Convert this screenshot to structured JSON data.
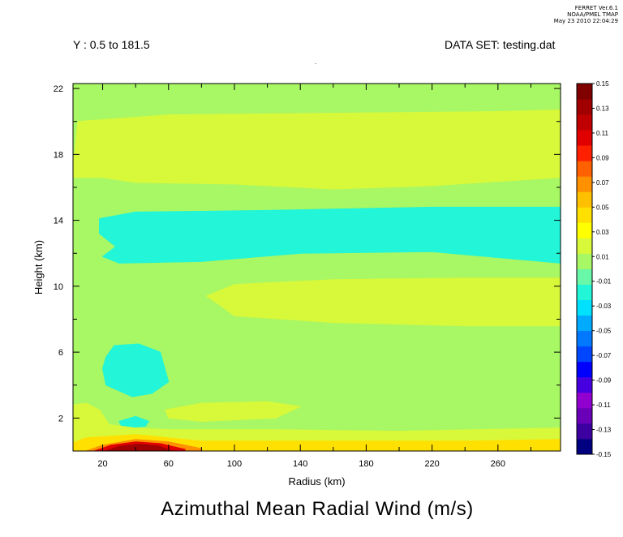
{
  "stamp": {
    "line1": "FERRET  Ver.6.1",
    "line2": "NOAA/PMEL TMAP",
    "line3": "May 23 2010 22:04:29"
  },
  "header": {
    "left": "Y : 0.5 to 181.5",
    "right": "DATA SET: testing.dat"
  },
  "colors": {
    "background_field": "#69f7a8",
    "frame": "#000000"
  },
  "chart_data": {
    "type": "heatmap",
    "title": "Azimuthal Mean Radial Wind (m/s)",
    "xlabel": "Radius (km)",
    "ylabel": "Height (km)",
    "xlim": [
      2,
      298
    ],
    "ylim": [
      0,
      22.3
    ],
    "xticks": [
      20,
      60,
      100,
      140,
      180,
      220,
      260
    ],
    "xtick_labels": [
      "20",
      "60",
      "100",
      "140",
      "180",
      "220",
      "260"
    ],
    "yticks": [
      2,
      6,
      10,
      14,
      18,
      22
    ],
    "ytick_labels": [
      "2",
      "6",
      "10",
      "14",
      "18",
      "22"
    ],
    "colorbar": {
      "levels": [
        -0.15,
        -0.13,
        -0.11,
        -0.09,
        -0.07,
        -0.05,
        -0.03,
        -0.01,
        0.01,
        0.03,
        0.05,
        0.07,
        0.09,
        0.11,
        0.13,
        0.15
      ],
      "labels": [
        "-0.15",
        "-0.13",
        "-0.11",
        "-0.09",
        "-0.07",
        "-0.05",
        "-0.03",
        "-0.01",
        "0.01",
        "0.03",
        "0.05",
        "0.07",
        "0.09",
        "0.11",
        "0.13",
        "0.15"
      ],
      "colors": [
        "#000080",
        "#3c00a0",
        "#6a00b8",
        "#9200d0",
        "#4600e0",
        "#0000ff",
        "#0046ff",
        "#0078ff",
        "#00aaff",
        "#00e0ff",
        "#22f5d8",
        "#69f7a8",
        "#a8f764",
        "#d8f83a",
        "#ffff00",
        "#ffe000",
        "#ffc000",
        "#ff9000",
        "#ff6000",
        "#ff2000",
        "#e00000",
        "#c00000",
        "#a00000",
        "#800000"
      ]
    },
    "regions": [
      {
        "level": 0,
        "points": [
          [
            2,
            0
          ],
          [
            298,
            0
          ],
          [
            298,
            22.3
          ],
          [
            2,
            22.3
          ]
        ]
      },
      {
        "level": 0.02,
        "points": [
          [
            2,
            17.2
          ],
          [
            20,
            18.0
          ],
          [
            80,
            19.2
          ],
          [
            160,
            19.6
          ],
          [
            240,
            19.8
          ],
          [
            298,
            19.8
          ],
          [
            298,
            16.6
          ],
          [
            220,
            16.1
          ],
          [
            160,
            15.9
          ],
          [
            100,
            16.2
          ],
          [
            40,
            16.3
          ],
          [
            20,
            16.6
          ],
          [
            2,
            16.6
          ]
        ]
      },
      {
        "level": 0.02,
        "points": [
          [
            5,
            20.0
          ],
          [
            60,
            20.4
          ],
          [
            160,
            20.5
          ],
          [
            260,
            20.6
          ],
          [
            298,
            20.7
          ],
          [
            298,
            19.8
          ],
          [
            240,
            19.8
          ],
          [
            160,
            19.6
          ],
          [
            80,
            19.2
          ],
          [
            20,
            18.0
          ],
          [
            2,
            17.2
          ]
        ]
      },
      {
        "level": -0.02,
        "points": [
          [
            18,
            14.1
          ],
          [
            40,
            14.5
          ],
          [
            120,
            14.6
          ],
          [
            220,
            14.8
          ],
          [
            298,
            14.8
          ],
          [
            298,
            11.4
          ],
          [
            220,
            12.1
          ],
          [
            140,
            12.0
          ],
          [
            80,
            11.5
          ],
          [
            30,
            11.4
          ],
          [
            20,
            11.8
          ],
          [
            28,
            12.4
          ],
          [
            18,
            13.2
          ]
        ]
      },
      {
        "level": 0.02,
        "points": [
          [
            83,
            9.4
          ],
          [
            100,
            10.1
          ],
          [
            160,
            10.4
          ],
          [
            240,
            10.5
          ],
          [
            298,
            10.5
          ],
          [
            298,
            7.6
          ],
          [
            240,
            7.6
          ],
          [
            160,
            7.8
          ],
          [
            100,
            8.2
          ],
          [
            92,
            8.8
          ]
        ]
      },
      {
        "level": -0.02,
        "points": [
          [
            22,
            5.7
          ],
          [
            27,
            6.4
          ],
          [
            42,
            6.5
          ],
          [
            55,
            6.0
          ],
          [
            60,
            4.2
          ],
          [
            50,
            3.5
          ],
          [
            38,
            3.3
          ],
          [
            22,
            4.0
          ],
          [
            20,
            5.0
          ]
        ]
      },
      {
        "level": 0.02,
        "points": [
          [
            58,
            2.5
          ],
          [
            80,
            2.9
          ],
          [
            120,
            3.0
          ],
          [
            140,
            2.7
          ],
          [
            125,
            2.0
          ],
          [
            80,
            1.8
          ],
          [
            60,
            2.0
          ]
        ]
      },
      {
        "level": -0.02,
        "points": [
          [
            30,
            1.8
          ],
          [
            40,
            2.1
          ],
          [
            48,
            1.8
          ],
          [
            46,
            1.5
          ],
          [
            32,
            1.4
          ]
        ]
      },
      {
        "level": 0.02,
        "points": [
          [
            2,
            0
          ],
          [
            2,
            2.8
          ],
          [
            10,
            2.9
          ],
          [
            18,
            2.5
          ],
          [
            24,
            1.6
          ],
          [
            40,
            1.4
          ],
          [
            60,
            1.3
          ],
          [
            120,
            1.3
          ],
          [
            200,
            1.2
          ],
          [
            298,
            1.4
          ],
          [
            298,
            0
          ]
        ]
      },
      {
        "level": 0.04,
        "points": [
          [
            2,
            0
          ],
          [
            2,
            0.5
          ],
          [
            10,
            0.8
          ],
          [
            40,
            1.0
          ],
          [
            80,
            0.6
          ],
          [
            160,
            0.6
          ],
          [
            240,
            0.6
          ],
          [
            298,
            0.7
          ],
          [
            298,
            0
          ]
        ]
      },
      {
        "level": 0.07,
        "points": [
          [
            10,
            0
          ],
          [
            20,
            0.35
          ],
          [
            40,
            0.7
          ],
          [
            60,
            0.55
          ],
          [
            80,
            0.15
          ],
          [
            80,
            0
          ]
        ]
      },
      {
        "level": 0.1,
        "points": [
          [
            15,
            0
          ],
          [
            25,
            0.35
          ],
          [
            40,
            0.55
          ],
          [
            55,
            0.45
          ],
          [
            70,
            0.1
          ],
          [
            70,
            0
          ]
        ]
      },
      {
        "level": 0.13,
        "points": [
          [
            22,
            0
          ],
          [
            30,
            0.28
          ],
          [
            42,
            0.42
          ],
          [
            54,
            0.3
          ],
          [
            62,
            0
          ]
        ]
      }
    ]
  }
}
